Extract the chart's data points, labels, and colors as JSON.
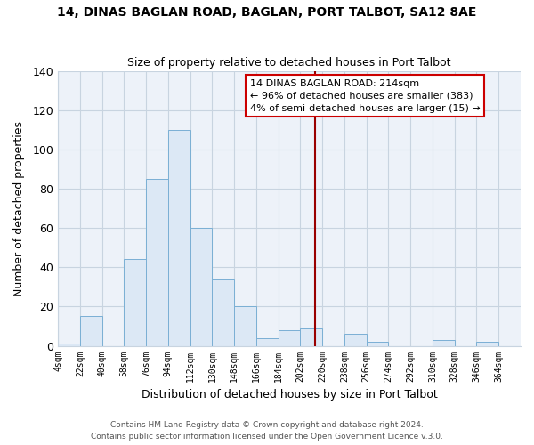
{
  "title": "14, DINAS BAGLAN ROAD, BAGLAN, PORT TALBOT, SA12 8AE",
  "subtitle": "Size of property relative to detached houses in Port Talbot",
  "xlabel": "Distribution of detached houses by size in Port Talbot",
  "ylabel": "Number of detached properties",
  "bar_color": "#dce8f5",
  "bar_edge_color": "#7aafd4",
  "grid_color": "#c8d4e0",
  "bin_labels": [
    "4sqm",
    "22sqm",
    "40sqm",
    "58sqm",
    "76sqm",
    "94sqm",
    "112sqm",
    "130sqm",
    "148sqm",
    "166sqm",
    "184sqm",
    "202sqm",
    "220sqm",
    "238sqm",
    "256sqm",
    "274sqm",
    "292sqm",
    "310sqm",
    "328sqm",
    "346sqm",
    "364sqm"
  ],
  "bar_heights": [
    1,
    15,
    0,
    44,
    85,
    110,
    60,
    34,
    20,
    4,
    8,
    9,
    0,
    6,
    2,
    0,
    0,
    3,
    0,
    2,
    0
  ],
  "ylim": [
    0,
    140
  ],
  "yticks": [
    0,
    20,
    40,
    60,
    80,
    100,
    120,
    140
  ],
  "vline_color": "#990000",
  "annotation_title": "14 DINAS BAGLAN ROAD: 214sqm",
  "annotation_line1": "← 96% of detached houses are smaller (383)",
  "annotation_line2": "4% of semi-detached houses are larger (15) →",
  "annotation_box_facecolor": "#ffffff",
  "annotation_box_edgecolor": "#cc0000",
  "footer1": "Contains HM Land Registry data © Crown copyright and database right 2024.",
  "footer2": "Contains public sector information licensed under the Open Government Licence v.3.0.",
  "background_color": "#ffffff",
  "plot_bg_color": "#edf2f9"
}
